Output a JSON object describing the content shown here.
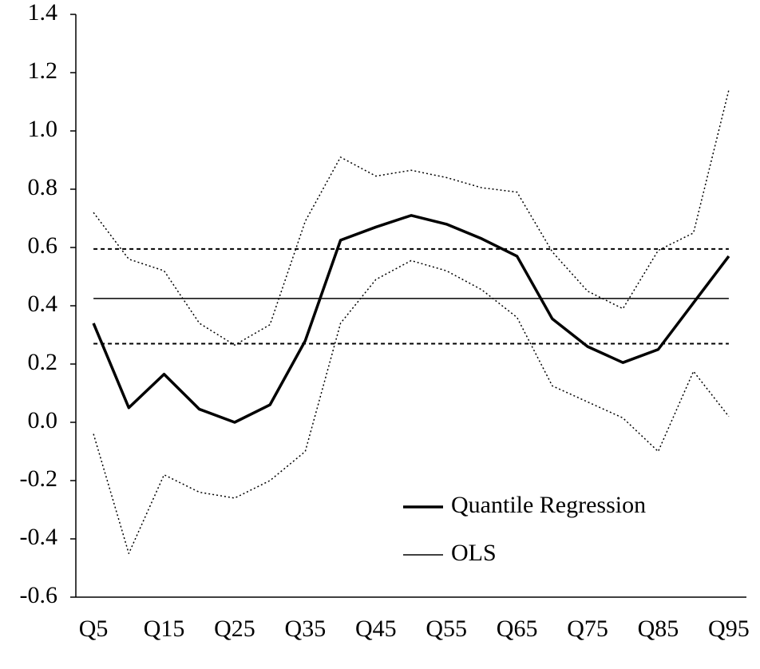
{
  "chart_data": {
    "type": "line",
    "categories": [
      "Q5",
      null,
      "Q15",
      null,
      "Q25",
      null,
      "Q35",
      null,
      "Q45",
      null,
      "Q55",
      null,
      "Q65",
      null,
      "Q75",
      null,
      "Q85",
      null,
      "Q95"
    ],
    "series": [
      {
        "name": "Quantile Regression",
        "color": "#000000",
        "style": "thick",
        "values": [
          0.34,
          0.05,
          0.165,
          0.045,
          0.0,
          0.06,
          0.28,
          0.625,
          0.67,
          0.71,
          0.68,
          0.63,
          0.57,
          0.355,
          0.26,
          0.205,
          0.25,
          0.41,
          0.57
        ]
      },
      {
        "color": "#000000",
        "style": "dotted",
        "values": [
          0.72,
          0.56,
          0.52,
          0.34,
          0.265,
          0.335,
          0.69,
          0.91,
          0.845,
          0.865,
          0.84,
          0.805,
          0.79,
          0.585,
          0.45,
          0.39,
          0.59,
          0.65,
          1.14
        ]
      },
      {
        "color": "#000000",
        "style": "dotted",
        "values": [
          -0.04,
          -0.45,
          -0.18,
          -0.24,
          -0.26,
          -0.2,
          -0.1,
          0.34,
          0.49,
          0.555,
          0.52,
          0.455,
          0.36,
          0.125,
          0.07,
          0.015,
          -0.1,
          0.175,
          0.02
        ]
      },
      {
        "name": "OLS",
        "color": "#000000",
        "style": "thin",
        "values": [
          0.425,
          0.425,
          0.425,
          0.425,
          0.425,
          0.425,
          0.425,
          0.425,
          0.425,
          0.425,
          0.425,
          0.425,
          0.425,
          0.425,
          0.425,
          0.425,
          0.425,
          0.425,
          0.425
        ]
      },
      {
        "color": "#000000",
        "style": "dashed",
        "values": [
          0.595,
          0.595,
          0.595,
          0.595,
          0.595,
          0.595,
          0.595,
          0.595,
          0.595,
          0.595,
          0.595,
          0.595,
          0.595,
          0.595,
          0.595,
          0.595,
          0.595,
          0.595,
          0.595
        ]
      },
      {
        "color": "#000000",
        "style": "dashed",
        "values": [
          0.27,
          0.27,
          0.27,
          0.27,
          0.27,
          0.27,
          0.27,
          0.27,
          0.27,
          0.27,
          0.27,
          0.27,
          0.27,
          0.27,
          0.27,
          0.27,
          0.27,
          0.27,
          0.27
        ]
      }
    ],
    "ylim": [
      -0.6,
      1.4
    ],
    "yticks": [
      -0.6,
      -0.4,
      -0.2,
      {
        "value": 0,
        "label": "0.0"
      },
      0.2,
      0.4,
      0.6,
      0.8,
      {
        "value": 1,
        "label": "1.0"
      },
      1.2,
      1.4
    ],
    "grid": false,
    "legend": "lower-right"
  }
}
